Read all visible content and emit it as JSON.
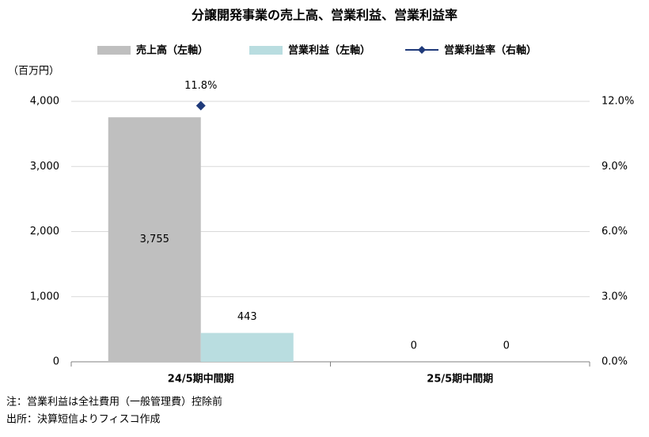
{
  "chart_data": {
    "type": "bar_line",
    "title": "分譲開発事業の売上高、営業利益、営業利益率",
    "y_unit_label": "（百万円）",
    "categories": [
      "24/5期中間期",
      "25/5期中間期"
    ],
    "series": [
      {
        "name": "売上高（左軸）",
        "color": "#bfbfbf",
        "type": "bar",
        "values": [
          3755,
          0
        ],
        "value_labels": [
          "3,755",
          "0"
        ]
      },
      {
        "name": "営業利益（左軸）",
        "color": "#b9dde0",
        "type": "bar",
        "values": [
          443,
          0
        ]
      },
      {
        "name": "営業利益率（右軸）",
        "color": "#1f3a7a",
        "type": "line",
        "axis": "y2",
        "values": [
          11.8,
          null
        ],
        "value_labels": [
          "11.8%",
          null
        ]
      }
    ],
    "ylim": [
      0,
      4000
    ],
    "yticks": [
      0,
      {
        "value": 1000,
        "label": "1,000"
      },
      {
        "value": 2000,
        "label": "2,000"
      },
      {
        "value": 3000,
        "label": "3,000"
      },
      {
        "value": 4000,
        "label": "4,000"
      }
    ],
    "y2lim": [
      0,
      12
    ],
    "y2ticks": [
      {
        "value": 0,
        "label": "0.0%"
      },
      {
        "value": 3,
        "label": "3.0%"
      },
      {
        "value": 6,
        "label": "6.0%"
      },
      {
        "value": 9,
        "label": "9.0%"
      },
      {
        "value": 12,
        "label": "12.0%"
      }
    ],
    "grid": true,
    "legend": "top",
    "notes": [
      "注：営業利益は全社費用（一般管理費）控除前",
      "出所：決算短信よりフィスコ作成"
    ]
  }
}
